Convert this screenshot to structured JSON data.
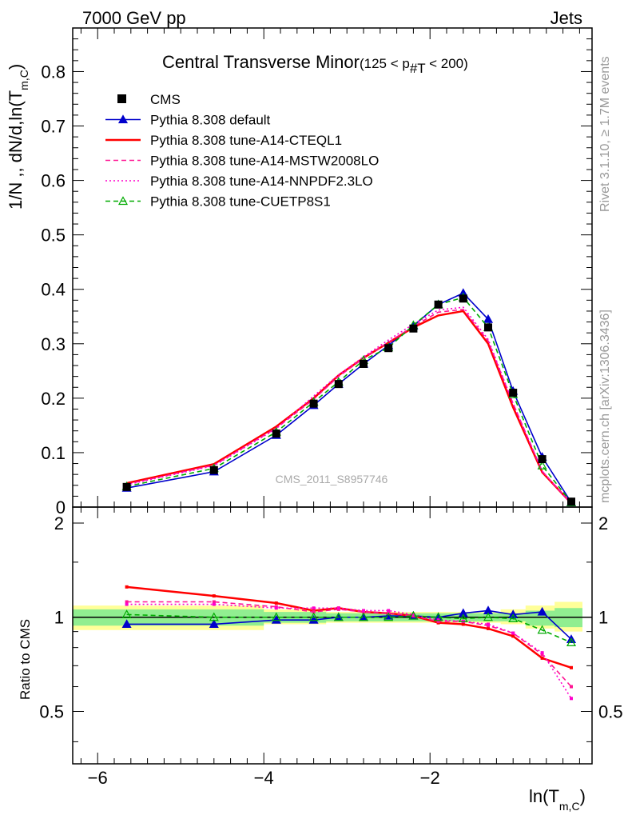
{
  "header": {
    "left_label": "7000 GeV pp",
    "right_label": "Jets"
  },
  "chart_data": {
    "type": "line",
    "title": "Central Transverse Minor",
    "title_cut": "(125 < p",
    "title_cut_sub": "#T",
    "title_cut_end": " < 200)",
    "ylabel": "1/N ,, dN/d,ln(T",
    "ylabel_sub": "m,C",
    "ylabel_end": ")",
    "xlabel": "ln(T",
    "xlabel_sub": "m,C",
    "xlabel_end": ")",
    "ratio_ylabel": "Ratio to CMS",
    "analysis_id": "CMS_2011_S8957746",
    "side_text_top": "Rivet 3.1.10, ≥ 1.7M events",
    "side_text_bottom": "mcplots.cern.ch [arXiv:1306.3436]",
    "xlim": [
      -6.3,
      -0.05
    ],
    "ylim": [
      0,
      0.88
    ],
    "ratio_ylim": [
      0.34,
      2.25
    ],
    "x_ticks": [
      -6,
      -4,
      -2
    ],
    "x_tick_labels": [
      "−6",
      "−4",
      "−2"
    ],
    "y_ticks": [
      0,
      0.1,
      0.2,
      0.3,
      0.4,
      0.5,
      0.6,
      0.7,
      0.8
    ],
    "y_tick_labels": [
      "0",
      "0.1",
      "0.2",
      "0.3",
      "0.4",
      "0.5",
      "0.6",
      "0.7",
      "0.8"
    ],
    "ratio_ticks": [
      0.5,
      1,
      2
    ],
    "ratio_tick_labels": [
      "0.5",
      "1",
      "2"
    ],
    "legend_placement": "top-left",
    "data": {
      "name": "CMS",
      "x": [
        -5.65,
        -4.6,
        -3.85,
        -3.4,
        -3.1,
        -2.8,
        -2.5,
        -2.2,
        -1.9,
        -1.6,
        -1.3,
        -1.0,
        -0.65,
        -0.3
      ],
      "y": [
        0.037,
        0.068,
        0.135,
        0.19,
        0.226,
        0.263,
        0.292,
        0.328,
        0.372,
        0.383,
        0.33,
        0.21,
        0.088,
        0.01
      ],
      "band_x": [
        -6.3,
        -5.2,
        -4.0,
        -3.25,
        -2.95,
        -2.65,
        -2.35,
        -2.05,
        -1.75,
        -1.45,
        -1.15,
        -0.85,
        -0.5,
        -0.1
      ],
      "band_green_lo": [
        0.94,
        0.94,
        0.96,
        0.97,
        0.97,
        0.97,
        0.97,
        0.97,
        0.97,
        0.97,
        0.97,
        0.94,
        0.93,
        0.93
      ],
      "band_green_hi": [
        1.06,
        1.06,
        1.04,
        1.03,
        1.03,
        1.03,
        1.03,
        1.03,
        1.03,
        1.03,
        1.03,
        1.05,
        1.07,
        1.07
      ],
      "band_yellow_lo": [
        0.91,
        0.91,
        0.95,
        0.96,
        0.96,
        0.96,
        0.96,
        0.96,
        0.96,
        0.96,
        0.95,
        0.92,
        0.9,
        0.9
      ],
      "band_yellow_hi": [
        1.09,
        1.09,
        1.06,
        1.04,
        1.04,
        1.04,
        1.04,
        1.04,
        1.04,
        1.04,
        1.06,
        1.09,
        1.12,
        1.12
      ]
    },
    "series": [
      {
        "name": "Pythia 8.308 default",
        "color": "#0000cc",
        "dash": "",
        "marker": "triangle-filled",
        "y": [
          0.035,
          0.065,
          0.132,
          0.187,
          0.226,
          0.263,
          0.297,
          0.333,
          0.372,
          0.393,
          0.345,
          0.213,
          0.092,
          0.0085
        ],
        "ratio": [
          0.95,
          0.95,
          0.98,
          0.98,
          1.0,
          1.0,
          1.01,
          1.01,
          1.0,
          1.03,
          1.05,
          1.02,
          1.04,
          0.85
        ]
      },
      {
        "name": "Pythia 8.308 tune-A14-CTEQL1",
        "color": "#ff0000",
        "dash": "",
        "marker": "none",
        "y": [
          0.044,
          0.079,
          0.148,
          0.2,
          0.242,
          0.274,
          0.302,
          0.33,
          0.352,
          0.36,
          0.3,
          0.183,
          0.064,
          0.007
        ],
        "ratio": [
          1.25,
          1.17,
          1.11,
          1.05,
          1.07,
          1.04,
          1.03,
          1.01,
          0.96,
          0.95,
          0.92,
          0.87,
          0.74,
          0.69
        ]
      },
      {
        "name": "Pythia 8.308 tune-A14-MSTW2008LO",
        "color": "#ff1493",
        "dash": "6,4",
        "marker": "none",
        "y": [
          0.042,
          0.077,
          0.145,
          0.198,
          0.24,
          0.273,
          0.303,
          0.332,
          0.358,
          0.363,
          0.305,
          0.19,
          0.066,
          0.006
        ],
        "ratio": [
          1.12,
          1.12,
          1.08,
          1.04,
          1.06,
          1.04,
          1.03,
          1.01,
          0.97,
          0.97,
          0.94,
          0.89,
          0.76,
          0.6
        ]
      },
      {
        "name": "Pythia 8.308 tune-A14-NNPDF2.3LO",
        "color": "#ff00cc",
        "dash": "2,3",
        "marker": "none",
        "y": [
          0.041,
          0.076,
          0.144,
          0.204,
          0.243,
          0.276,
          0.307,
          0.336,
          0.362,
          0.367,
          0.308,
          0.19,
          0.066,
          0.006
        ],
        "ratio": [
          1.1,
          1.1,
          1.07,
          1.07,
          1.07,
          1.05,
          1.05,
          1.02,
          0.98,
          0.97,
          0.95,
          0.89,
          0.77,
          0.55
        ]
      },
      {
        "name": "Pythia 8.308 tune-CUETP8S1",
        "color": "#00aa00",
        "dash": "6,4",
        "marker": "triangle-open",
        "y": [
          0.038,
          0.071,
          0.138,
          0.193,
          0.23,
          0.27,
          0.293,
          0.334,
          0.372,
          0.385,
          0.33,
          0.207,
          0.076,
          0.0085
        ],
        "ratio": [
          1.02,
          1.0,
          1.0,
          1.0,
          1.0,
          1.0,
          1.0,
          1.01,
          1.0,
          0.99,
          1.0,
          0.99,
          0.91,
          0.83
        ]
      }
    ]
  }
}
